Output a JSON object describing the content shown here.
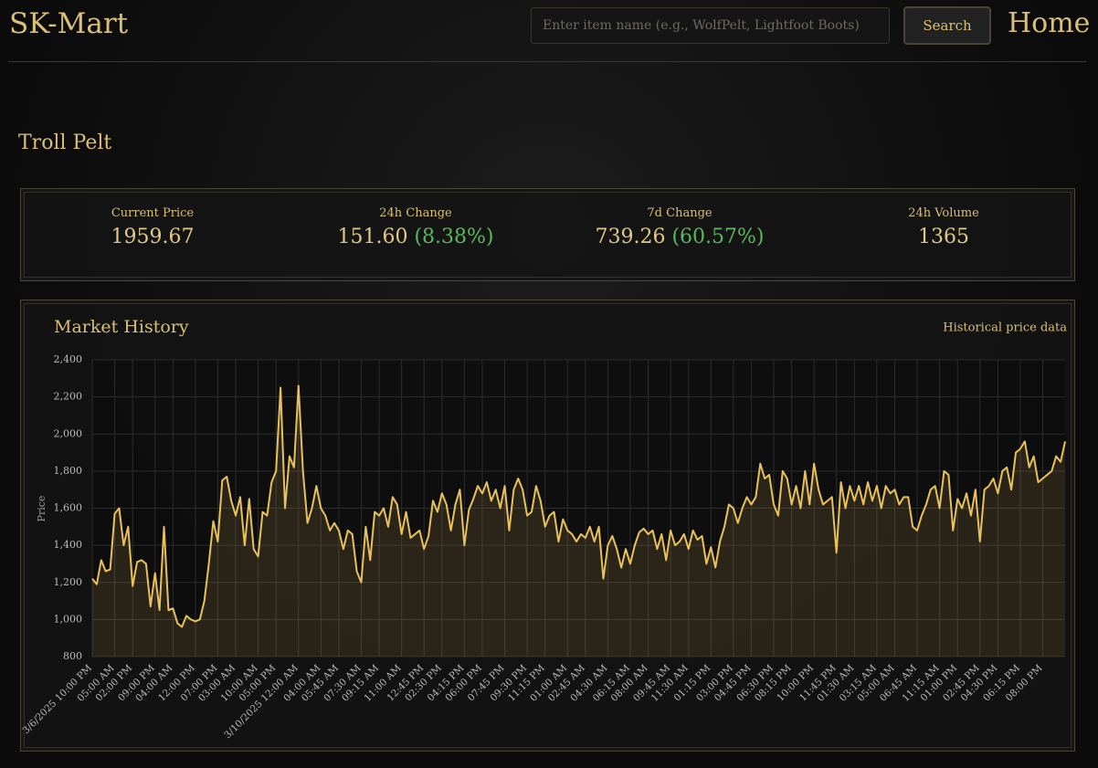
{
  "header": {
    "brand": "SK-Mart",
    "search_placeholder": "Enter item name (e.g., WolfPelt, Lightfoot Boots)",
    "search_button": "Search",
    "nav": "Home"
  },
  "item": {
    "name": "Troll Pelt"
  },
  "stats": [
    {
      "label": "Current Price",
      "value": "1959.67"
    },
    {
      "label": "24h Change",
      "value": "151.60",
      "percent": "(8.38%)"
    },
    {
      "label": "7d Change",
      "value": "739.26",
      "percent": "(60.57%)"
    },
    {
      "label": "24h Volume",
      "value": "1365"
    }
  ],
  "chart_data": {
    "type": "line",
    "title": "Market History",
    "subtitle": "Historical price data",
    "ylabel": "Price",
    "color": "#e8c15a",
    "grid": true,
    "ylim": [
      800,
      2400
    ],
    "yticks": [
      800,
      {
        "value": 1000,
        "label": "1,000"
      },
      {
        "value": 1200,
        "label": "1,200"
      },
      {
        "value": 1400,
        "label": "1,400"
      },
      {
        "value": 1600,
        "label": "1,600"
      },
      {
        "value": 1800,
        "label": "1,800"
      },
      {
        "value": 2000,
        "label": "2,000"
      },
      {
        "value": 2200,
        "label": "2,200"
      },
      {
        "value": 2400,
        "label": "2,400"
      }
    ],
    "categories": [
      "3/6/2025 10:00 PM",
      null,
      null,
      null,
      null,
      "05:00 AM",
      null,
      null,
      null,
      "02:00 PM",
      null,
      null,
      null,
      null,
      "09:00 PM",
      null,
      null,
      null,
      "04:00 AM",
      null,
      null,
      null,
      null,
      "12:00 PM",
      null,
      null,
      null,
      null,
      "07:00 PM",
      null,
      null,
      null,
      "03:00 AM",
      null,
      null,
      null,
      null,
      "10:00 AM",
      null,
      null,
      null,
      "05:00 PM",
      null,
      null,
      null,
      null,
      "3/10/2025 12:00 AM",
      null,
      null,
      null,
      null,
      "04:00 AM",
      null,
      null,
      null,
      "05:45 AM",
      null,
      null,
      null,
      null,
      "07:30 AM",
      null,
      null,
      null,
      "09:15 AM",
      null,
      null,
      null,
      null,
      "11:00 AM",
      null,
      null,
      null,
      null,
      "12:45 PM",
      null,
      null,
      null,
      "02:30 PM",
      null,
      null,
      null,
      null,
      "04:15 PM",
      null,
      null,
      null,
      "06:00 PM",
      null,
      null,
      null,
      null,
      "07:45 PM",
      null,
      null,
      null,
      null,
      "09:30 PM",
      null,
      null,
      null,
      "11:15 PM",
      null,
      null,
      null,
      null,
      "01:00 AM",
      null,
      null,
      null,
      "02:45 AM",
      null,
      null,
      null,
      null,
      "04:30 AM",
      null,
      null,
      null,
      null,
      "06:15 AM",
      null,
      null,
      null,
      "08:00 AM",
      null,
      null,
      null,
      null,
      "09:45 AM",
      null,
      null,
      null,
      "11:30 AM",
      null,
      null,
      null,
      null,
      "01:15 PM",
      null,
      null,
      null,
      null,
      "03:00 PM",
      null,
      null,
      null,
      "04:45 PM",
      null,
      null,
      null,
      null,
      "06:30 PM",
      null,
      null,
      null,
      "08:15 PM",
      null,
      null,
      null,
      null,
      "10:00 PM",
      null,
      null,
      null,
      null,
      "11:45 PM",
      null,
      null,
      null,
      "01:30 AM",
      null,
      null,
      null,
      null,
      "03:15 AM",
      null,
      null,
      null,
      "05:00 AM",
      null,
      null,
      null,
      null,
      "06:45 AM",
      null,
      null,
      null,
      null,
      "11:15 AM",
      null,
      null,
      null,
      "01:00 PM",
      null,
      null,
      null,
      null,
      "02:45 PM",
      null,
      null,
      null,
      "04:30 PM",
      null,
      null,
      null,
      null,
      "06:15 PM",
      null,
      null,
      null,
      null,
      "08:00 PM",
      null,
      null,
      null,
      null,
      null
    ],
    "values": [
      1220,
      1190,
      1320,
      1260,
      1270,
      1570,
      1600,
      1400,
      1500,
      1180,
      1310,
      1320,
      1300,
      1070,
      1250,
      1050,
      1500,
      1050,
      1060,
      980,
      960,
      1020,
      1000,
      990,
      1000,
      1100,
      1300,
      1530,
      1420,
      1750,
      1770,
      1640,
      1560,
      1660,
      1400,
      1650,
      1380,
      1340,
      1580,
      1560,
      1740,
      1800,
      2250,
      1600,
      1880,
      1820,
      2260,
      1800,
      1520,
      1600,
      1720,
      1600,
      1560,
      1480,
      1520,
      1480,
      1380,
      1480,
      1460,
      1260,
      1200,
      1500,
      1320,
      1580,
      1560,
      1600,
      1500,
      1660,
      1620,
      1460,
      1580,
      1440,
      1460,
      1480,
      1380,
      1450,
      1640,
      1580,
      1680,
      1620,
      1480,
      1620,
      1700,
      1400,
      1590,
      1650,
      1720,
      1680,
      1740,
      1640,
      1700,
      1600,
      1720,
      1480,
      1700,
      1760,
      1700,
      1560,
      1580,
      1720,
      1640,
      1500,
      1560,
      1580,
      1420,
      1540,
      1480,
      1460,
      1420,
      1460,
      1440,
      1500,
      1420,
      1500,
      1220,
      1400,
      1450,
      1380,
      1280,
      1380,
      1300,
      1400,
      1470,
      1490,
      1460,
      1480,
      1380,
      1460,
      1320,
      1480,
      1400,
      1420,
      1460,
      1380,
      1480,
      1430,
      1450,
      1300,
      1390,
      1280,
      1420,
      1500,
      1620,
      1600,
      1520,
      1600,
      1660,
      1620,
      1660,
      1840,
      1760,
      1780,
      1620,
      1560,
      1800,
      1760,
      1620,
      1720,
      1600,
      1800,
      1620,
      1840,
      1700,
      1620,
      1640,
      1660,
      1360,
      1740,
      1600,
      1720,
      1640,
      1720,
      1620,
      1740,
      1640,
      1720,
      1600,
      1720,
      1680,
      1700,
      1620,
      1660,
      1660,
      1500,
      1480,
      1560,
      1620,
      1700,
      1720,
      1600,
      1800,
      1780,
      1480,
      1650,
      1600,
      1680,
      1560,
      1700,
      1420,
      1700,
      1720,
      1760,
      1680,
      1800,
      1820,
      1700,
      1900,
      1920,
      1960,
      1820,
      1880,
      1740,
      1760,
      1780,
      1800,
      1880,
      1850,
      1960
    ]
  }
}
